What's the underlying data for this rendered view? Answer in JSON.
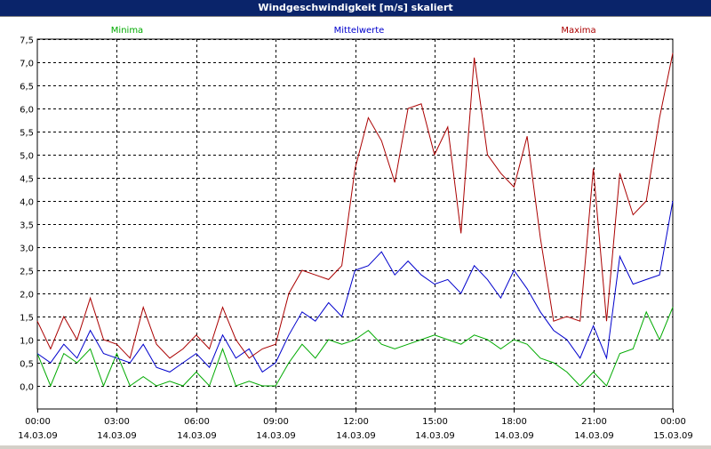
{
  "window": {
    "title": "Windgeschwindigkeit [m/s] skaliert"
  },
  "colors": {
    "min": "#00aa00",
    "mean": "#0000cc",
    "max": "#aa0000",
    "grid": "#000000",
    "background": "#ffffff"
  },
  "chart_data": {
    "type": "line",
    "title": "Windgeschwindigkeit [m/s] skaliert",
    "ylabel": "m/s",
    "ylim": [
      -0.5,
      7.5
    ],
    "xlim": [
      0,
      24
    ],
    "yticks": [
      "0,0",
      "0,5",
      "1,0",
      "1,5",
      "2,0",
      "2,5",
      "3,0",
      "3,5",
      "4,0",
      "4,5",
      "5,0",
      "5,5",
      "6,0",
      "6,5",
      "7,0",
      "7,5"
    ],
    "ytick_values": [
      0,
      0.5,
      1,
      1.5,
      2,
      2.5,
      3,
      3.5,
      4,
      4.5,
      5,
      5.5,
      6,
      6.5,
      7,
      7.5
    ],
    "xticks": [
      {
        "time": "00:00",
        "date": "14.03.09",
        "hour": 0
      },
      {
        "time": "03:00",
        "date": "14.03.09",
        "hour": 3
      },
      {
        "time": "06:00",
        "date": "14.03.09",
        "hour": 6
      },
      {
        "time": "09:00",
        "date": "14.03.09",
        "hour": 9
      },
      {
        "time": "12:00",
        "date": "14.03.09",
        "hour": 12
      },
      {
        "time": "15:00",
        "date": "14.03.09",
        "hour": 15
      },
      {
        "time": "18:00",
        "date": "14.03.09",
        "hour": 18
      },
      {
        "time": "21:00",
        "date": "14.03.09",
        "hour": 21
      },
      {
        "time": "00:00",
        "date": "15.03.09",
        "hour": 24
      }
    ],
    "grid": true,
    "series": [
      {
        "name": "Minima",
        "key": "min",
        "x": [
          0,
          0.5,
          1,
          1.5,
          2,
          2.5,
          3,
          3.5,
          4,
          4.5,
          5,
          5.5,
          6,
          6.5,
          7,
          7.5,
          8,
          8.5,
          9,
          9.5,
          10,
          10.5,
          11,
          11.5,
          12,
          12.5,
          13,
          13.5,
          14,
          14.5,
          15,
          15.5,
          16,
          16.5,
          17,
          17.5,
          18,
          18.5,
          19,
          19.5,
          20,
          20.5,
          21,
          21.5,
          22,
          22.5,
          23,
          23.5,
          24
        ],
        "values": [
          0.7,
          0,
          0.7,
          0.5,
          0.8,
          0,
          0.7,
          0,
          0.2,
          0,
          0.1,
          0,
          0.3,
          0,
          0.8,
          0,
          0.1,
          0,
          0,
          0.5,
          0.9,
          0.6,
          1.0,
          0.9,
          1.0,
          1.2,
          0.9,
          0.8,
          0.9,
          1.0,
          1.1,
          1.0,
          0.9,
          1.1,
          1.0,
          0.8,
          1.0,
          0.9,
          0.6,
          0.5,
          0.3,
          0,
          0.3,
          0,
          0.7,
          0.8,
          1.6,
          1.0,
          1.7
        ]
      },
      {
        "name": "Mittelwerte",
        "key": "mean",
        "x": [
          0,
          0.5,
          1,
          1.5,
          2,
          2.5,
          3,
          3.5,
          4,
          4.5,
          5,
          5.5,
          6,
          6.5,
          7,
          7.5,
          8,
          8.5,
          9,
          9.5,
          10,
          10.5,
          11,
          11.5,
          12,
          12.5,
          13,
          13.5,
          14,
          14.5,
          15,
          15.5,
          16,
          16.5,
          17,
          17.5,
          18,
          18.5,
          19,
          19.5,
          20,
          20.5,
          21,
          21.5,
          22,
          22.5,
          23,
          23.5,
          24
        ],
        "values": [
          0.7,
          0.5,
          0.9,
          0.6,
          1.2,
          0.7,
          0.6,
          0.5,
          0.9,
          0.4,
          0.3,
          0.5,
          0.7,
          0.4,
          1.1,
          0.6,
          0.8,
          0.3,
          0.5,
          1.1,
          1.6,
          1.4,
          1.8,
          1.5,
          2.5,
          2.6,
          2.9,
          2.4,
          2.7,
          2.4,
          2.2,
          2.3,
          2.0,
          2.6,
          2.3,
          1.9,
          2.5,
          2.1,
          1.6,
          1.2,
          1.0,
          0.6,
          1.3,
          0.6,
          2.8,
          2.2,
          2.3,
          2.4,
          4.0
        ]
      },
      {
        "name": "Maxima",
        "key": "max",
        "x": [
          0,
          0.5,
          1,
          1.5,
          2,
          2.5,
          3,
          3.5,
          4,
          4.5,
          5,
          5.5,
          6,
          6.5,
          7,
          7.5,
          8,
          8.5,
          9,
          9.5,
          10,
          10.5,
          11,
          11.5,
          12,
          12.5,
          13,
          13.5,
          14,
          14.5,
          15,
          15.5,
          16,
          16.5,
          17,
          17.5,
          18,
          18.5,
          19,
          19.5,
          20,
          20.5,
          21,
          21.5,
          22,
          22.5,
          23,
          23.5,
          24
        ],
        "values": [
          1.4,
          0.8,
          1.5,
          1.0,
          1.9,
          1.0,
          0.9,
          0.6,
          1.7,
          0.9,
          0.6,
          0.8,
          1.1,
          0.8,
          1.7,
          1.0,
          0.6,
          0.8,
          0.9,
          2.0,
          2.5,
          2.4,
          2.3,
          2.6,
          4.7,
          5.8,
          5.3,
          4.4,
          6.0,
          6.1,
          5.0,
          5.6,
          3.3,
          7.1,
          5.0,
          4.6,
          4.3,
          5.4,
          3.2,
          1.4,
          1.5,
          1.4,
          4.7,
          1.4,
          4.6,
          3.7,
          4.0,
          5.8,
          7.2
        ]
      }
    ]
  },
  "legend": {
    "min_label": "Minima",
    "mean_label": "Mittelwerte",
    "max_label": "Maxima"
  }
}
